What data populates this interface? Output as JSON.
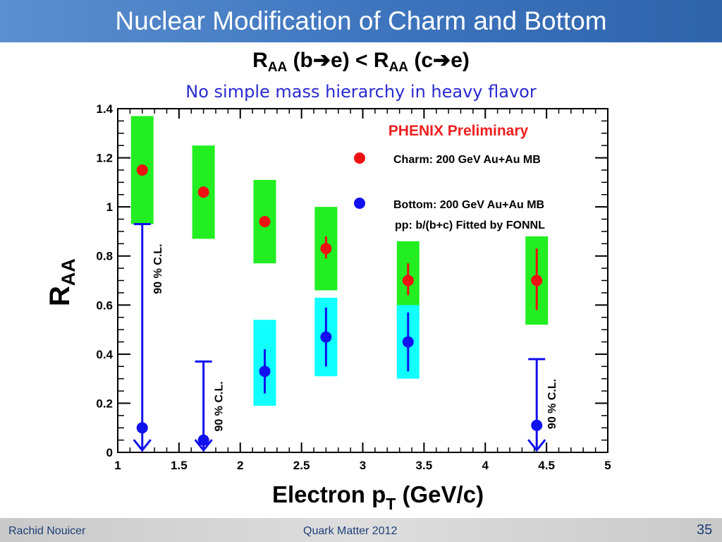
{
  "slide": {
    "title": "Nuclear Modification of Charm and Bottom",
    "headline": {
      "r1": "R",
      "sub1": "AA",
      "part1": " (b",
      "arrow1": "➔",
      "part2": "e) < ",
      "r2": "R",
      "sub2": "AA",
      "part3": " (c",
      "arrow2": "➔",
      "part4": "e)"
    },
    "subheadline": "No simple mass hierarchy in heavy flavor"
  },
  "footer": {
    "author": "Rachid Nouicer",
    "conference": "Quark Matter 2012",
    "page_number": "35"
  },
  "chart_data": {
    "type": "scatter",
    "xlabel_main": "Electron p",
    "xlabel_sub": "T",
    "xlabel_unit": " (GeV/c)",
    "ylabel_main": "R",
    "ylabel_sub": "AA",
    "xlim": [
      1,
      5
    ],
    "ylim": [
      0,
      1.4
    ],
    "xticks": [
      "1",
      "1.5",
      "2",
      "2.5",
      "3",
      "3.5",
      "4",
      "4.5",
      "5"
    ],
    "yticks": [
      "0",
      "0.2",
      "0.4",
      "0.6",
      "0.8",
      "1",
      "1.2",
      "1.4"
    ],
    "annotation": "PHENIX Preliminary",
    "annotation_color": "#ee2020",
    "legend_note": "pp: b/(b+c) Fitted by FONNL",
    "limit_label": "90 % C.L.",
    "series": [
      {
        "name": "Charm: 200 GeV Au+Au MB",
        "color": "#ee1111",
        "box_color": "#22ee22",
        "points": [
          {
            "x": 1.2,
            "y": 1.15,
            "sys": [
              0.93,
              1.37
            ]
          },
          {
            "x": 1.7,
            "y": 1.06,
            "sys": [
              0.87,
              1.25
            ]
          },
          {
            "x": 2.2,
            "y": 0.94,
            "sys": [
              0.77,
              1.11
            ]
          },
          {
            "x": 2.7,
            "y": 0.83,
            "stat": [
              0.79,
              0.88
            ],
            "sys": [
              0.66,
              1.0
            ]
          },
          {
            "x": 3.37,
            "y": 0.7,
            "stat": [
              0.64,
              0.77
            ],
            "sys": [
              0.54,
              0.86
            ]
          },
          {
            "x": 4.42,
            "y": 0.7,
            "stat": [
              0.58,
              0.83
            ],
            "sys": [
              0.52,
              0.88
            ]
          }
        ]
      },
      {
        "name": "Bottom: 200 GeV Au+Au MB",
        "color": "#1111ee",
        "box_color": "#11ffff",
        "points": [
          {
            "x": 1.2,
            "y": 0.1,
            "upper_limit": 0.93
          },
          {
            "x": 1.7,
            "y": 0.05,
            "upper_limit": 0.37
          },
          {
            "x": 2.2,
            "y": 0.33,
            "stat": [
              0.24,
              0.42
            ],
            "sys": [
              0.19,
              0.54
            ]
          },
          {
            "x": 2.7,
            "y": 0.47,
            "stat": [
              0.35,
              0.59
            ],
            "sys": [
              0.31,
              0.63
            ]
          },
          {
            "x": 3.37,
            "y": 0.45,
            "stat": [
              0.33,
              0.57
            ],
            "sys": [
              0.3,
              0.6
            ]
          },
          {
            "x": 4.42,
            "y": 0.11,
            "upper_limit": 0.38
          }
        ]
      }
    ]
  }
}
